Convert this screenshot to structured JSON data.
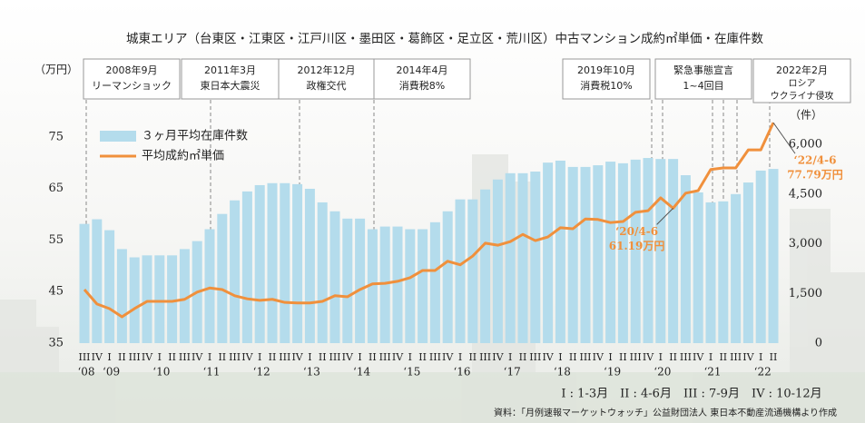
{
  "chart_data": {
    "type": "bar-line",
    "title": "城東エリア（台東区・江東区・江戸川区・墨田区・葛飾区・足立区・荒川区）中古マンション成約㎡単価・在庫件数",
    "y_unit": "（万円）",
    "y2_unit": "（件）",
    "categories": [
      "III",
      "IV",
      "I",
      "II",
      "III",
      "IV",
      "I",
      "II",
      "III",
      "IV",
      "I",
      "II",
      "III",
      "IV",
      "I",
      "II",
      "III",
      "IV",
      "I",
      "II",
      "III",
      "IV",
      "I",
      "II",
      "III",
      "IV",
      "I",
      "II",
      "III",
      "IV",
      "I",
      "II",
      "III",
      "IV",
      "I",
      "II",
      "III",
      "IV",
      "I",
      "II",
      "III",
      "IV",
      "I",
      "II",
      "III",
      "IV",
      "I",
      "II",
      "III",
      "IV",
      "I",
      "II",
      "III",
      "IV",
      "I",
      "II"
    ],
    "years": [
      "‘08",
      "‘09",
      "‘10",
      "‘11",
      "‘12",
      "‘13",
      "‘14",
      "‘15",
      "‘16",
      "‘17",
      "‘18",
      "‘19",
      "‘20",
      "‘21",
      "‘22"
    ],
    "series": [
      {
        "name": "３ヶ月平均在庫件数",
        "type": "bar",
        "axis": "y2",
        "color": "#b4dcec",
        "values": [
          3600,
          3740,
          3410,
          2840,
          2590,
          2650,
          2650,
          2650,
          2840,
          3080,
          3440,
          3900,
          4310,
          4580,
          4770,
          4830,
          4830,
          4800,
          4660,
          4250,
          3980,
          3760,
          3760,
          3440,
          3520,
          3520,
          3440,
          3440,
          3650,
          3980,
          4340,
          4340,
          4640,
          4940,
          5130,
          5130,
          5180,
          5450,
          5510,
          5320,
          5320,
          5370,
          5480,
          5430,
          5540,
          5590,
          5560,
          5560,
          5070,
          4550,
          4250,
          4280,
          4500,
          4850,
          5210,
          5260
        ]
      },
      {
        "name": "平均成約㎡単価",
        "type": "line",
        "axis": "y",
        "color": "#f0903c",
        "values": [
          45.4,
          42.6,
          41.7,
          40.1,
          41.7,
          43.1,
          43.1,
          43.1,
          43.5,
          44.9,
          45.7,
          45.4,
          44.2,
          43.6,
          43.3,
          43.5,
          42.9,
          42.8,
          42.8,
          43.1,
          44.2,
          44.0,
          45.4,
          46.5,
          46.6,
          47.0,
          47.7,
          49.1,
          49.1,
          50.9,
          50.2,
          51.9,
          54.4,
          54.0,
          54.7,
          56.1,
          54.9,
          55.6,
          57.4,
          57.2,
          59.1,
          59.0,
          58.4,
          58.6,
          60.4,
          60.7,
          63.2,
          61.19,
          64.1,
          64.6,
          68.7,
          69.0,
          69.0,
          72.5,
          72.5,
          77.79
        ],
        "label_dates": [
          null,
          null,
          null,
          null,
          null,
          null,
          null,
          null,
          null,
          null,
          null,
          null,
          null,
          null,
          null,
          null,
          null,
          null,
          null,
          null,
          null,
          null,
          null,
          null,
          null,
          null,
          null,
          null,
          null,
          null,
          null,
          null,
          null,
          null,
          null,
          null,
          null,
          null,
          null,
          null,
          null,
          null,
          null,
          null,
          null,
          null,
          null,
          "‘20/4-6",
          null,
          null,
          null,
          null,
          null,
          null,
          null,
          "‘22/4-6"
        ],
        "value_labels": [
          null,
          null,
          null,
          null,
          null,
          null,
          null,
          null,
          null,
          null,
          null,
          null,
          null,
          null,
          null,
          null,
          null,
          null,
          null,
          null,
          null,
          null,
          null,
          null,
          null,
          null,
          null,
          null,
          null,
          null,
          null,
          null,
          null,
          null,
          null,
          null,
          null,
          null,
          null,
          null,
          null,
          null,
          null,
          null,
          null,
          null,
          null,
          "61.19万円",
          null,
          null,
          null,
          null,
          null,
          null,
          null,
          "77.79万円"
        ]
      }
    ],
    "ylim": [
      35,
      80
    ],
    "yticks": [
      35,
      45,
      55,
      65,
      75
    ],
    "y2lim": [
      0,
      7000
    ],
    "y2ticks": [
      0,
      {
        "value": 1500,
        "label": "1,500"
      },
      {
        "value": 3000,
        "label": "3,000"
      },
      {
        "value": 4500,
        "label": "4,500"
      },
      {
        "value": 6000,
        "label": "6,000"
      }
    ],
    "annotations": [
      {
        "lines": [
          "2008年9月",
          "リーマンショック"
        ]
      },
      {
        "lines": [
          "2011年3月",
          "東日本大震災"
        ]
      },
      {
        "lines": [
          "2012年12月",
          "政権交代"
        ]
      },
      {
        "lines": [
          "2014年4月",
          "消費税8%"
        ]
      },
      {
        "lines": [
          "2019年10月",
          "消費税10%"
        ]
      },
      {
        "lines": [
          "緊急事態宣言",
          "1~4回目"
        ]
      },
      {
        "lines": [
          "2022年2月",
          "ロシア",
          "ウクライナ侵攻"
        ]
      }
    ],
    "quarter_note": "I : 1-3月　II : 4-6月　III : 7-9月　IV : 10-12月",
    "source": "資料：「月例速報マーケットウォッチ」公益財団法人 東日本不動産流通機構より作成"
  }
}
